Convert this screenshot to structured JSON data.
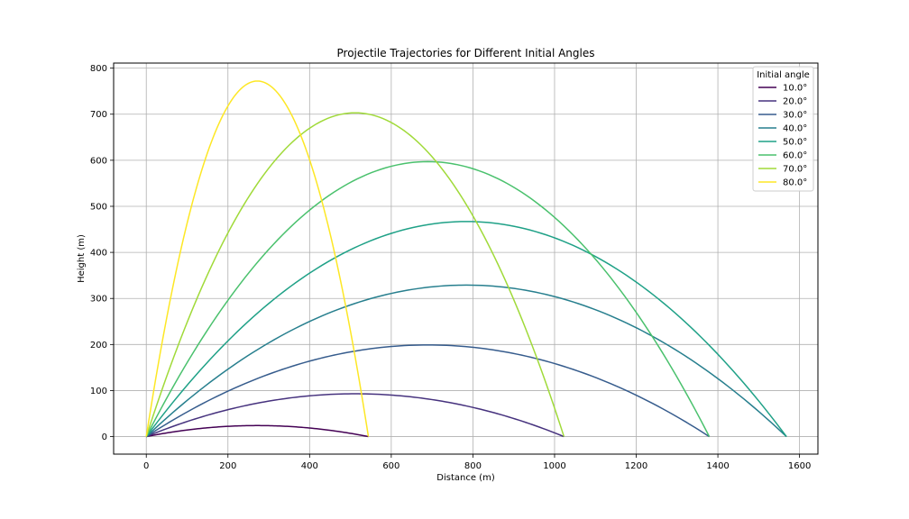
{
  "chart_data": {
    "type": "line",
    "title": "Projectile Trajectories for Different Initial Angles",
    "xlabel": "Distance (m)",
    "ylabel": "Height (m)",
    "xlim": [
      -80,
      1645
    ],
    "ylim": [
      -38,
      811
    ],
    "x_ticks": [
      0,
      200,
      400,
      600,
      800,
      1000,
      1200,
      1400,
      1600
    ],
    "y_ticks": [
      0,
      100,
      200,
      300,
      400,
      500,
      600,
      700,
      800
    ],
    "grid": true,
    "legend": {
      "title": "Initial angle",
      "placement": "top-right"
    },
    "series": [
      {
        "name": "10.0°",
        "color": "#440154",
        "range": 544,
        "max_height": 24
      },
      {
        "name": "20.0°",
        "color": "#46327e",
        "range": 1023,
        "max_height": 93
      },
      {
        "name": "30.0°",
        "color": "#365c8d",
        "range": 1379,
        "max_height": 199
      },
      {
        "name": "40.0°",
        "color": "#277f8e",
        "range": 1568,
        "max_height": 329
      },
      {
        "name": "50.0°",
        "color": "#1fa187",
        "range": 1568,
        "max_height": 467
      },
      {
        "name": "60.0°",
        "color": "#4ac16d",
        "range": 1379,
        "max_height": 597
      },
      {
        "name": "70.0°",
        "color": "#a0da39",
        "range": 1023,
        "max_height": 703
      },
      {
        "name": "80.0°",
        "color": "#fde725",
        "range": 544,
        "max_height": 772
      }
    ]
  }
}
